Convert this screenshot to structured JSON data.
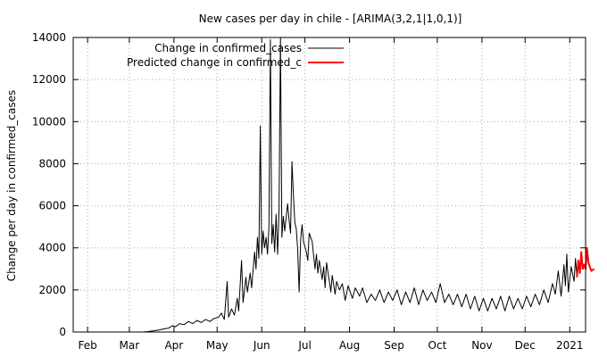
{
  "chart_data": {
    "type": "line",
    "title": "New cases per day in chile -  [ARIMA(3,2,1|1,0,1)]",
    "xlabel": "",
    "ylabel": "Change per day in confirmed_cases",
    "ylim": [
      0,
      14000
    ],
    "yticks": [
      0,
      2000,
      4000,
      6000,
      8000,
      10000,
      12000,
      14000
    ],
    "xlim": [
      "2020-01-22",
      "2021-01-12"
    ],
    "xticks": [
      {
        "date": "2020-02-01",
        "label": "Feb"
      },
      {
        "date": "2020-03-01",
        "label": "Mar"
      },
      {
        "date": "2020-04-01",
        "label": "Apr"
      },
      {
        "date": "2020-05-01",
        "label": "May"
      },
      {
        "date": "2020-06-01",
        "label": "Jun"
      },
      {
        "date": "2020-07-01",
        "label": "Jul"
      },
      {
        "date": "2020-08-01",
        "label": "Aug"
      },
      {
        "date": "2020-09-01",
        "label": "Sep"
      },
      {
        "date": "2020-10-01",
        "label": "Oct"
      },
      {
        "date": "2020-11-01",
        "label": "Nov"
      },
      {
        "date": "2020-12-01",
        "label": "Dec"
      },
      {
        "date": "2021-01-01",
        "label": "2021"
      }
    ],
    "grid": true,
    "legend_position": "top-right",
    "series": [
      {
        "name": "Change in confirmed_cases",
        "color": "#000000",
        "points": [
          [
            "2020-03-03",
            0
          ],
          [
            "2020-03-10",
            0
          ],
          [
            "2020-03-14",
            20
          ],
          [
            "2020-03-18",
            60
          ],
          [
            "2020-03-22",
            100
          ],
          [
            "2020-03-25",
            150
          ],
          [
            "2020-03-28",
            180
          ],
          [
            "2020-03-31",
            300
          ],
          [
            "2020-04-02",
            250
          ],
          [
            "2020-04-05",
            400
          ],
          [
            "2020-04-08",
            350
          ],
          [
            "2020-04-11",
            500
          ],
          [
            "2020-04-14",
            400
          ],
          [
            "2020-04-17",
            550
          ],
          [
            "2020-04-20",
            450
          ],
          [
            "2020-04-23",
            600
          ],
          [
            "2020-04-26",
            500
          ],
          [
            "2020-04-29",
            650
          ],
          [
            "2020-05-02",
            700
          ],
          [
            "2020-05-04",
            900
          ],
          [
            "2020-05-06",
            600
          ],
          [
            "2020-05-08",
            2400
          ],
          [
            "2020-05-09",
            700
          ],
          [
            "2020-05-11",
            1100
          ],
          [
            "2020-05-13",
            800
          ],
          [
            "2020-05-15",
            1600
          ],
          [
            "2020-05-16",
            1000
          ],
          [
            "2020-05-18",
            3400
          ],
          [
            "2020-05-19",
            1400
          ],
          [
            "2020-05-21",
            2600
          ],
          [
            "2020-05-22",
            1900
          ],
          [
            "2020-05-24",
            2800
          ],
          [
            "2020-05-25",
            2100
          ],
          [
            "2020-05-27",
            3800
          ],
          [
            "2020-05-28",
            3000
          ],
          [
            "2020-05-29",
            4500
          ],
          [
            "2020-05-30",
            3500
          ],
          [
            "2020-05-31",
            9800
          ],
          [
            "2020-06-01",
            3700
          ],
          [
            "2020-06-02",
            4800
          ],
          [
            "2020-06-03",
            4000
          ],
          [
            "2020-06-04",
            4500
          ],
          [
            "2020-06-05",
            3700
          ],
          [
            "2020-06-06",
            5000
          ],
          [
            "2020-06-07",
            13900
          ],
          [
            "2020-06-08",
            4200
          ],
          [
            "2020-06-09",
            5100
          ],
          [
            "2020-06-10",
            3800
          ],
          [
            "2020-06-11",
            5600
          ],
          [
            "2020-06-12",
            3700
          ],
          [
            "2020-06-13",
            5800
          ],
          [
            "2020-06-14",
            14000
          ],
          [
            "2020-06-15",
            4500
          ],
          [
            "2020-06-16",
            5500
          ],
          [
            "2020-06-17",
            4800
          ],
          [
            "2020-06-19",
            6100
          ],
          [
            "2020-06-20",
            5300
          ],
          [
            "2020-06-21",
            4700
          ],
          [
            "2020-06-22",
            8100
          ],
          [
            "2020-06-23",
            6500
          ],
          [
            "2020-06-24",
            5200
          ],
          [
            "2020-06-25",
            4900
          ],
          [
            "2020-06-26",
            3900
          ],
          [
            "2020-06-27",
            1900
          ],
          [
            "2020-06-28",
            4400
          ],
          [
            "2020-06-29",
            5100
          ],
          [
            "2020-06-30",
            4300
          ],
          [
            "2020-07-02",
            3800
          ],
          [
            "2020-07-03",
            3400
          ],
          [
            "2020-07-04",
            4700
          ],
          [
            "2020-07-06",
            4300
          ],
          [
            "2020-07-08",
            3000
          ],
          [
            "2020-07-09",
            3700
          ],
          [
            "2020-07-10",
            2800
          ],
          [
            "2020-07-11",
            3400
          ],
          [
            "2020-07-13",
            2500
          ],
          [
            "2020-07-14",
            3100
          ],
          [
            "2020-07-15",
            2100
          ],
          [
            "2020-07-16",
            3300
          ],
          [
            "2020-07-18",
            2400
          ],
          [
            "2020-07-19",
            1900
          ],
          [
            "2020-07-20",
            2700
          ],
          [
            "2020-07-22",
            1800
          ],
          [
            "2020-07-23",
            2400
          ],
          [
            "2020-07-25",
            2000
          ],
          [
            "2020-07-27",
            2300
          ],
          [
            "2020-07-29",
            1500
          ],
          [
            "2020-07-31",
            2200
          ],
          [
            "2020-08-03",
            1600
          ],
          [
            "2020-08-05",
            2100
          ],
          [
            "2020-08-08",
            1700
          ],
          [
            "2020-08-10",
            2100
          ],
          [
            "2020-08-13",
            1400
          ],
          [
            "2020-08-16",
            1800
          ],
          [
            "2020-08-19",
            1500
          ],
          [
            "2020-08-22",
            2000
          ],
          [
            "2020-08-25",
            1400
          ],
          [
            "2020-08-28",
            1900
          ],
          [
            "2020-08-31",
            1500
          ],
          [
            "2020-09-03",
            2000
          ],
          [
            "2020-09-06",
            1300
          ],
          [
            "2020-09-09",
            1900
          ],
          [
            "2020-09-12",
            1400
          ],
          [
            "2020-09-15",
            2100
          ],
          [
            "2020-09-18",
            1300
          ],
          [
            "2020-09-21",
            2000
          ],
          [
            "2020-09-24",
            1500
          ],
          [
            "2020-09-27",
            1900
          ],
          [
            "2020-09-30",
            1400
          ],
          [
            "2020-10-03",
            2300
          ],
          [
            "2020-10-06",
            1400
          ],
          [
            "2020-10-09",
            1800
          ],
          [
            "2020-10-12",
            1300
          ],
          [
            "2020-10-15",
            1800
          ],
          [
            "2020-10-18",
            1200
          ],
          [
            "2020-10-21",
            1800
          ],
          [
            "2020-10-24",
            1100
          ],
          [
            "2020-10-27",
            1700
          ],
          [
            "2020-10-30",
            1000
          ],
          [
            "2020-11-02",
            1600
          ],
          [
            "2020-11-05",
            1000
          ],
          [
            "2020-11-08",
            1600
          ],
          [
            "2020-11-11",
            1100
          ],
          [
            "2020-11-14",
            1700
          ],
          [
            "2020-11-17",
            1000
          ],
          [
            "2020-11-20",
            1700
          ],
          [
            "2020-11-23",
            1100
          ],
          [
            "2020-11-26",
            1600
          ],
          [
            "2020-11-29",
            1100
          ],
          [
            "2020-12-02",
            1700
          ],
          [
            "2020-12-05",
            1200
          ],
          [
            "2020-12-08",
            1800
          ],
          [
            "2020-12-11",
            1300
          ],
          [
            "2020-12-14",
            2000
          ],
          [
            "2020-12-17",
            1400
          ],
          [
            "2020-12-20",
            2300
          ],
          [
            "2020-12-22",
            1800
          ],
          [
            "2020-12-24",
            2900
          ],
          [
            "2020-12-26",
            1700
          ],
          [
            "2020-12-28",
            3200
          ],
          [
            "2020-12-29",
            2200
          ],
          [
            "2020-12-30",
            3700
          ],
          [
            "2020-12-31",
            1900
          ],
          [
            "2021-01-02",
            3100
          ],
          [
            "2021-01-04",
            2400
          ],
          [
            "2021-01-05",
            3500
          ],
          [
            "2021-01-06",
            2600
          ]
        ]
      },
      {
        "name": "Predicted change in confirmed_c",
        "color": "#ff0000",
        "points": [
          [
            "2021-01-06",
            2600
          ],
          [
            "2021-01-07",
            3400
          ],
          [
            "2021-01-08",
            2800
          ],
          [
            "2021-01-09",
            3800
          ],
          [
            "2021-01-10",
            3000
          ],
          [
            "2021-01-11",
            3200
          ],
          [
            "2021-01-12",
            3000
          ],
          [
            "2021-01-13",
            4000
          ],
          [
            "2021-01-14",
            3300
          ],
          [
            "2021-01-15",
            3100
          ],
          [
            "2021-01-16",
            2900
          ],
          [
            "2021-01-18",
            3000
          ]
        ]
      }
    ]
  }
}
